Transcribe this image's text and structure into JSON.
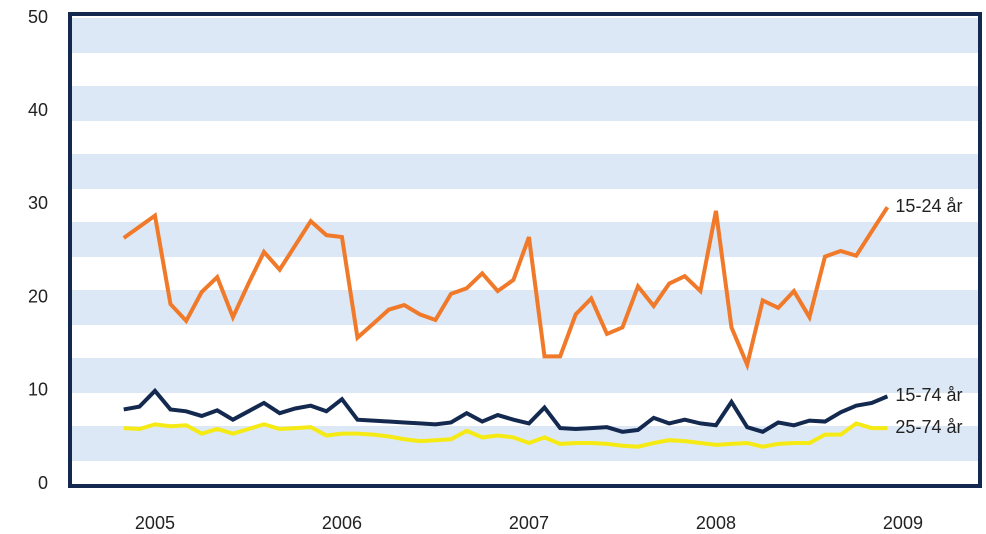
{
  "chart_data": {
    "type": "line",
    "x": [
      2004.833,
      2004.917,
      2005,
      2005.083,
      2005.167,
      2005.25,
      2005.333,
      2005.417,
      2005.5,
      2005.583,
      2005.667,
      2005.75,
      2005.833,
      2005.917,
      2006,
      2006.083,
      2006.167,
      2006.25,
      2006.333,
      2006.417,
      2006.5,
      2006.583,
      2006.667,
      2006.75,
      2006.833,
      2006.917,
      2007,
      2007.083,
      2007.167,
      2007.25,
      2007.333,
      2007.417,
      2007.5,
      2007.583,
      2007.667,
      2007.75,
      2007.833,
      2007.917,
      2008,
      2008.083,
      2008.167,
      2008.25,
      2008.333,
      2008.417,
      2008.5,
      2008.583,
      2008.667,
      2008.75,
      2008.833,
      2008.917
    ],
    "series": [
      {
        "name": "15-24 år",
        "color": "#f07a2a",
        "values": [
          26.4,
          27.6,
          28.8,
          19.3,
          17.5,
          20.6,
          22.2,
          17.9,
          21.5,
          24.9,
          23,
          25.6,
          28.2,
          26.7,
          26.5,
          15.7,
          17.2,
          18.7,
          19.2,
          18.2,
          17.6,
          20.4,
          21,
          22.6,
          20.7,
          21.9,
          26.5,
          13.7,
          13.7,
          18.2,
          19.9,
          16.1,
          16.8,
          21.2,
          19.1,
          21.5,
          22.3,
          20.7,
          29.3,
          16.8,
          12.8,
          19.7,
          18.9,
          20.7,
          17.9,
          24.4,
          25,
          24.5,
          27.1,
          29.7
        ]
      },
      {
        "name": "15-74 år",
        "color": "#14294f",
        "values": [
          8.0,
          8.3,
          10.0,
          8.0,
          7.8,
          7.3,
          7.9,
          6.9,
          7.8,
          8.7,
          7.6,
          8.1,
          8.4,
          7.8,
          9.1,
          6.9,
          6.8,
          6.7,
          6.6,
          6.5,
          6.4,
          6.6,
          7.6,
          6.7,
          7.4,
          6.9,
          6.5,
          8.2,
          6.0,
          5.9,
          6.0,
          6.1,
          5.6,
          5.8,
          7.1,
          6.5,
          6.9,
          6.5,
          6.3,
          8.8,
          6.1,
          5.6,
          6.6,
          6.3,
          6.8,
          6.7,
          7.7,
          8.4,
          8.7,
          9.4
        ]
      },
      {
        "name": "25-74 år",
        "color": "#f5ea14",
        "values": [
          6.0,
          5.9,
          6.4,
          6.2,
          6.3,
          5.4,
          5.9,
          5.4,
          5.9,
          6.4,
          5.9,
          6.0,
          6.1,
          5.2,
          5.4,
          5.4,
          5.3,
          5.1,
          4.8,
          4.6,
          4.7,
          4.8,
          5.7,
          5.0,
          5.2,
          5.0,
          4.4,
          5.0,
          4.3,
          4.4,
          4.4,
          4.3,
          4.1,
          4.0,
          4.4,
          4.7,
          4.6,
          4.4,
          4.2,
          4.3,
          4.4,
          4.0,
          4.3,
          4.4,
          4.4,
          5.3,
          5.3,
          6.5,
          6.0,
          6.0
        ]
      }
    ],
    "xlim": [
      2004.535,
      2009.412
    ],
    "xticks": [
      2005,
      2006,
      2007,
      2008,
      2009
    ],
    "ylim": [
      0,
      50
    ],
    "yticks": [
      0,
      10,
      20,
      30,
      40,
      50
    ],
    "grid": false
  }
}
